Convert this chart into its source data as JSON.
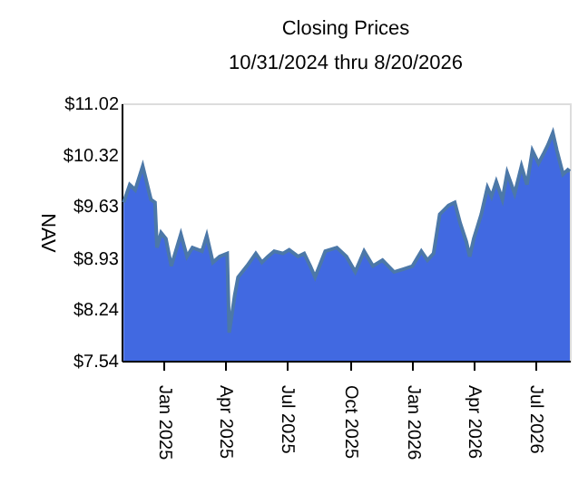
{
  "chart_data": {
    "type": "area",
    "title": "Closing Prices",
    "subtitle": "10/31/2024 thru 8/20/2026",
    "ylabel": "NAV",
    "x": [
      "2024-11-03",
      "2024-11-12",
      "2024-11-20",
      "2024-12-01",
      "2024-12-13",
      "2024-12-19",
      "2024-12-22",
      "2024-12-28",
      "2025-01-04",
      "2025-01-12",
      "2025-01-26",
      "2025-02-04",
      "2025-02-12",
      "2025-02-26",
      "2025-03-05",
      "2025-03-14",
      "2025-03-24",
      "2025-04-04",
      "2025-04-07",
      "2025-04-15",
      "2025-04-20",
      "2025-05-03",
      "2025-05-16",
      "2025-05-25",
      "2025-06-03",
      "2025-06-12",
      "2025-06-25",
      "2025-07-04",
      "2025-07-17",
      "2025-07-26",
      "2025-08-04",
      "2025-08-11",
      "2025-08-26",
      "2025-09-12",
      "2025-09-26",
      "2025-10-09",
      "2025-10-22",
      "2025-11-04",
      "2025-11-18",
      "2025-12-05",
      "2025-12-19",
      "2026-01-01",
      "2026-01-14",
      "2026-01-23",
      "2026-02-01",
      "2026-02-10",
      "2026-02-23",
      "2026-03-04",
      "2026-03-12",
      "2026-03-21",
      "2026-03-26",
      "2026-04-01",
      "2026-04-12",
      "2026-04-21",
      "2026-04-27",
      "2026-05-04",
      "2026-05-13",
      "2026-05-20",
      "2026-05-31",
      "2026-06-10",
      "2026-06-18",
      "2026-06-26",
      "2026-07-05",
      "2026-07-12",
      "2026-07-19",
      "2026-07-26",
      "2026-08-01",
      "2026-08-10",
      "2026-08-17",
      "2026-08-20"
    ],
    "series": [
      {
        "color": "#4169e1",
        "values": [
          9.68,
          9.92,
          9.85,
          10.17,
          9.72,
          9.68,
          9.07,
          9.27,
          9.19,
          8.82,
          9.25,
          8.95,
          9.07,
          9.02,
          9.23,
          8.87,
          8.95,
          8.99,
          7.92,
          8.42,
          8.67,
          8.82,
          8.99,
          8.87,
          8.95,
          9.02,
          8.99,
          9.04,
          8.95,
          8.99,
          8.82,
          8.67,
          9.02,
          9.07,
          8.95,
          8.74,
          9.02,
          8.82,
          8.9,
          8.74,
          8.78,
          8.82,
          9.02,
          8.9,
          8.99,
          9.52,
          9.64,
          9.68,
          9.4,
          9.15,
          8.95,
          9.19,
          9.52,
          9.88,
          9.76,
          9.96,
          9.72,
          10.08,
          9.8,
          10.17,
          9.92,
          10.38,
          10.21,
          10.33,
          10.46,
          10.62,
          10.38,
          10.06,
          10.12,
          10.1
        ]
      }
    ],
    "xlim": [
      "2024-10-31",
      "2026-08-20"
    ],
    "xticks": [
      {
        "value": "2025-01-01",
        "label": "Jan 2025"
      },
      {
        "value": "2025-04-01",
        "label": "Apr 2025"
      },
      {
        "value": "2025-07-01",
        "label": "Jul 2025"
      },
      {
        "value": "2025-10-01",
        "label": "Oct 2025"
      },
      {
        "value": "2026-01-01",
        "label": "Jan 2026"
      },
      {
        "value": "2026-04-01",
        "label": "Apr 2026"
      },
      {
        "value": "2026-07-01",
        "label": "Jul 2026"
      }
    ],
    "ylim": [
      7.54,
      11.02
    ],
    "yticks": [
      {
        "value": 7.54,
        "label": "$7.54"
      },
      {
        "value": 8.24,
        "label": "$8.24"
      },
      {
        "value": 8.93,
        "label": "$8.93"
      },
      {
        "value": 9.63,
        "label": "$9.63"
      },
      {
        "value": 10.32,
        "label": "$10.32"
      },
      {
        "value": 11.02,
        "label": "$11.02"
      }
    ],
    "grid": false
  }
}
